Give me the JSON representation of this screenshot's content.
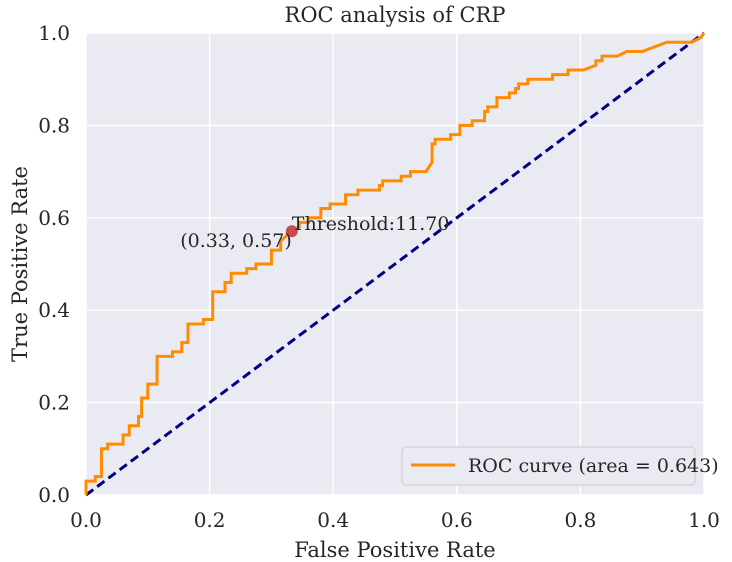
{
  "chart_data": {
    "type": "line",
    "title": "ROC analysis of CRP",
    "xlabel": "False Positive Rate",
    "ylabel": "True Positive Rate",
    "xlim": [
      0.0,
      1.0
    ],
    "ylim": [
      0.0,
      1.0
    ],
    "xticks": [
      "0.0",
      "0.2",
      "0.4",
      "0.6",
      "0.8",
      "1.0"
    ],
    "yticks": [
      "0.0",
      "0.2",
      "0.4",
      "0.6",
      "0.8",
      "1.0"
    ],
    "grid": true,
    "legend_position": "lower-right",
    "colors": {
      "roc": "#ff8c00",
      "diagonal": "#000080",
      "point": "#c44e52",
      "background": "#eaeaf2"
    },
    "series": [
      {
        "name": "ROC curve (area = 0.643)",
        "style": "solid",
        "x": [
          0.0,
          0.0,
          0.015,
          0.015,
          0.025,
          0.025,
          0.035,
          0.035,
          0.06,
          0.06,
          0.07,
          0.07,
          0.085,
          0.085,
          0.09,
          0.09,
          0.1,
          0.1,
          0.115,
          0.115,
          0.14,
          0.14,
          0.155,
          0.155,
          0.165,
          0.165,
          0.19,
          0.19,
          0.205,
          0.205,
          0.225,
          0.225,
          0.235,
          0.235,
          0.26,
          0.26,
          0.275,
          0.275,
          0.3,
          0.3,
          0.315,
          0.315,
          0.333,
          0.345,
          0.345,
          0.36,
          0.36,
          0.38,
          0.38,
          0.395,
          0.395,
          0.42,
          0.42,
          0.44,
          0.44,
          0.475,
          0.475,
          0.48,
          0.48,
          0.51,
          0.51,
          0.525,
          0.525,
          0.55,
          0.56,
          0.56,
          0.565,
          0.565,
          0.59,
          0.59,
          0.605,
          0.605,
          0.625,
          0.625,
          0.645,
          0.645,
          0.65,
          0.65,
          0.665,
          0.665,
          0.685,
          0.685,
          0.695,
          0.695,
          0.7,
          0.7,
          0.715,
          0.715,
          0.755,
          0.755,
          0.78,
          0.78,
          0.805,
          0.825,
          0.825,
          0.835,
          0.835,
          0.86,
          0.875,
          0.9,
          0.92,
          0.94,
          0.96,
          0.98,
          0.98,
          0.995,
          0.995,
          1.0
        ],
        "y": [
          0.0,
          0.03,
          0.03,
          0.04,
          0.04,
          0.1,
          0.1,
          0.11,
          0.11,
          0.13,
          0.13,
          0.15,
          0.15,
          0.17,
          0.17,
          0.21,
          0.21,
          0.24,
          0.24,
          0.3,
          0.3,
          0.31,
          0.31,
          0.33,
          0.33,
          0.37,
          0.37,
          0.38,
          0.38,
          0.44,
          0.44,
          0.46,
          0.46,
          0.48,
          0.48,
          0.49,
          0.49,
          0.5,
          0.5,
          0.53,
          0.53,
          0.55,
          0.571,
          0.58,
          0.59,
          0.59,
          0.6,
          0.6,
          0.62,
          0.62,
          0.63,
          0.63,
          0.65,
          0.65,
          0.66,
          0.66,
          0.67,
          0.67,
          0.68,
          0.68,
          0.69,
          0.69,
          0.7,
          0.7,
          0.72,
          0.76,
          0.76,
          0.77,
          0.77,
          0.78,
          0.78,
          0.8,
          0.8,
          0.81,
          0.81,
          0.83,
          0.83,
          0.84,
          0.84,
          0.86,
          0.86,
          0.87,
          0.87,
          0.88,
          0.88,
          0.89,
          0.89,
          0.9,
          0.9,
          0.91,
          0.91,
          0.92,
          0.92,
          0.93,
          0.94,
          0.94,
          0.95,
          0.95,
          0.96,
          0.96,
          0.97,
          0.98,
          0.98,
          0.98,
          0.98,
          0.99,
          0.99,
          1.0
        ]
      },
      {
        "name": "",
        "style": "dashed",
        "x": [
          0.0,
          1.0
        ],
        "y": [
          0.0,
          1.0
        ]
      }
    ],
    "points": [
      {
        "x": 0.333,
        "y": 0.571,
        "label": "(0.33, 0.57)",
        "annotation": "Threshold:11.70"
      }
    ],
    "legend": {
      "entries": [
        {
          "label": "ROC curve (area = 0.643)"
        }
      ]
    }
  }
}
